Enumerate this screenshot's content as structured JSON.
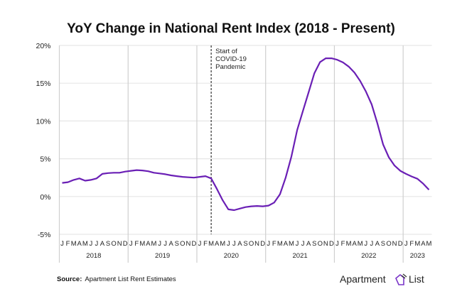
{
  "chart_data": {
    "type": "line",
    "title": "YoY Change in National Rent Index (2018 - Present)",
    "xlabel": "",
    "ylabel": "",
    "ylim": [
      -5,
      20
    ],
    "yticks": [
      "-5%",
      "0%",
      "5%",
      "10%",
      "15%",
      "20%"
    ],
    "ytick_values": [
      -5,
      0,
      5,
      10,
      15,
      20
    ],
    "grid": "horizontal",
    "years": [
      {
        "label": "2018",
        "months": 12
      },
      {
        "label": "2019",
        "months": 12
      },
      {
        "label": "2020",
        "months": 12
      },
      {
        "label": "2021",
        "months": 12
      },
      {
        "label": "2022",
        "months": 12
      },
      {
        "label": "2023",
        "months": 5
      }
    ],
    "month_labels": [
      "J",
      "F",
      "M",
      "A",
      "M",
      "J",
      "J",
      "A",
      "S",
      "O",
      "N",
      "D"
    ],
    "series": [
      {
        "color": "#6a1fb5",
        "values": [
          1.8,
          1.9,
          2.2,
          2.4,
          2.1,
          2.2,
          2.4,
          3.0,
          3.1,
          3.15,
          3.15,
          3.3,
          3.4,
          3.5,
          3.45,
          3.35,
          3.15,
          3.05,
          2.95,
          2.8,
          2.7,
          2.6,
          2.55,
          2.5,
          2.6,
          2.7,
          2.4,
          1.0,
          -0.5,
          -1.7,
          -1.8,
          -1.6,
          -1.4,
          -1.3,
          -1.25,
          -1.3,
          -1.2,
          -0.8,
          0.3,
          2.5,
          5.3,
          8.8,
          11.3,
          13.8,
          16.3,
          17.8,
          18.3,
          18.3,
          18.1,
          17.75,
          17.2,
          16.4,
          15.3,
          13.9,
          12.2,
          9.7,
          6.9,
          5.2,
          4.1,
          3.4,
          3.0,
          2.65,
          2.35,
          1.7,
          0.9
        ]
      }
    ],
    "annotation": {
      "lines": [
        "Start of",
        "COVID-19",
        "Pandemic"
      ],
      "at_month_index": 26.5
    }
  },
  "footer": {
    "source_label": "Source:",
    "source_text": "Apartment List Rent Estimates",
    "logo_text_left": "Apartment",
    "logo_text_right": "List"
  }
}
